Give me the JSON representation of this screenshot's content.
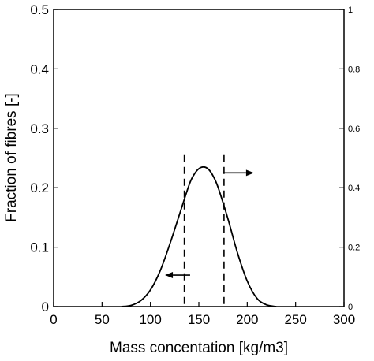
{
  "chart_data": {
    "type": "line",
    "title": "",
    "xlabel": "Mass concentation [kg/m3]",
    "ylabel": "Fraction of fibres [-]",
    "y2label": "",
    "xlim": [
      0,
      300
    ],
    "ylim": [
      0,
      0.5
    ],
    "y2lim": [
      0,
      1.0
    ],
    "x_ticks": [
      "0",
      "50",
      "100",
      "150",
      "200",
      "250",
      "300"
    ],
    "y_ticks": [
      "0",
      "0.1",
      "0.2",
      "0.3",
      "0.4",
      "0.5"
    ],
    "y2_ticks": [
      "0",
      "0.2",
      "0.4",
      "0.6",
      "0.8",
      "1"
    ],
    "grid": false,
    "series": [
      {
        "x": [
          70,
          80,
          90,
          100,
          110,
          120,
          130,
          140,
          145,
          150,
          155,
          160,
          165,
          170,
          180,
          190,
          200,
          210,
          220,
          230
        ],
        "y": [
          0.0,
          0.002,
          0.01,
          0.028,
          0.06,
          0.105,
          0.155,
          0.205,
          0.222,
          0.232,
          0.235,
          0.231,
          0.219,
          0.2,
          0.148,
          0.09,
          0.043,
          0.014,
          0.003,
          0.0
        ],
        "color": "#000000"
      }
    ],
    "vertical_dashed_lines": [
      135,
      176
    ],
    "arrows": [
      {
        "from_x": 141,
        "to_x": 115,
        "y": 0.053,
        "direction": "left"
      },
      {
        "from_x": 175,
        "to_x": 207,
        "y": 0.225,
        "direction": "right"
      }
    ]
  }
}
